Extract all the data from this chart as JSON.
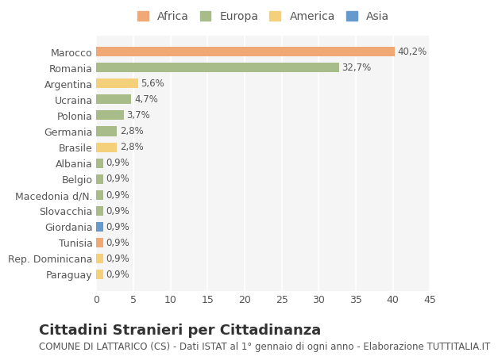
{
  "categories": [
    "Marocco",
    "Romania",
    "Argentina",
    "Ucraina",
    "Polonia",
    "Germania",
    "Brasile",
    "Albania",
    "Belgio",
    "Macedonia d/N.",
    "Slovacchia",
    "Giordania",
    "Tunisia",
    "Rep. Dominicana",
    "Paraguay"
  ],
  "values": [
    40.2,
    32.7,
    5.6,
    4.7,
    3.7,
    2.8,
    2.8,
    0.9,
    0.9,
    0.9,
    0.9,
    0.9,
    0.9,
    0.9,
    0.9
  ],
  "labels": [
    "40,2%",
    "32,7%",
    "5,6%",
    "4,7%",
    "3,7%",
    "2,8%",
    "2,8%",
    "0,9%",
    "0,9%",
    "0,9%",
    "0,9%",
    "0,9%",
    "0,9%",
    "0,9%",
    "0,9%"
  ],
  "continents": [
    "Africa",
    "Europa",
    "America",
    "Europa",
    "Europa",
    "Europa",
    "America",
    "Europa",
    "Europa",
    "Europa",
    "Europa",
    "Asia",
    "Africa",
    "America",
    "America"
  ],
  "continent_colors": {
    "Africa": "#F0A875",
    "Europa": "#A8BC8A",
    "America": "#F5D07A",
    "Asia": "#6699CC"
  },
  "legend_order": [
    "Africa",
    "Europa",
    "America",
    "Asia"
  ],
  "title": "Cittadini Stranieri per Cittadinanza",
  "subtitle": "COMUNE DI LATTARICO (CS) - Dati ISTAT al 1° gennaio di ogni anno - Elaborazione TUTTITALIA.IT",
  "xlim": [
    0,
    45
  ],
  "xticks": [
    0,
    5,
    10,
    15,
    20,
    25,
    30,
    35,
    40,
    45
  ],
  "background_color": "#FFFFFF",
  "plot_background": "#F5F5F5",
  "grid_color": "#FFFFFF",
  "bar_height": 0.6,
  "title_fontsize": 13,
  "subtitle_fontsize": 8.5,
  "tick_fontsize": 9,
  "label_fontsize": 8.5,
  "legend_fontsize": 10
}
